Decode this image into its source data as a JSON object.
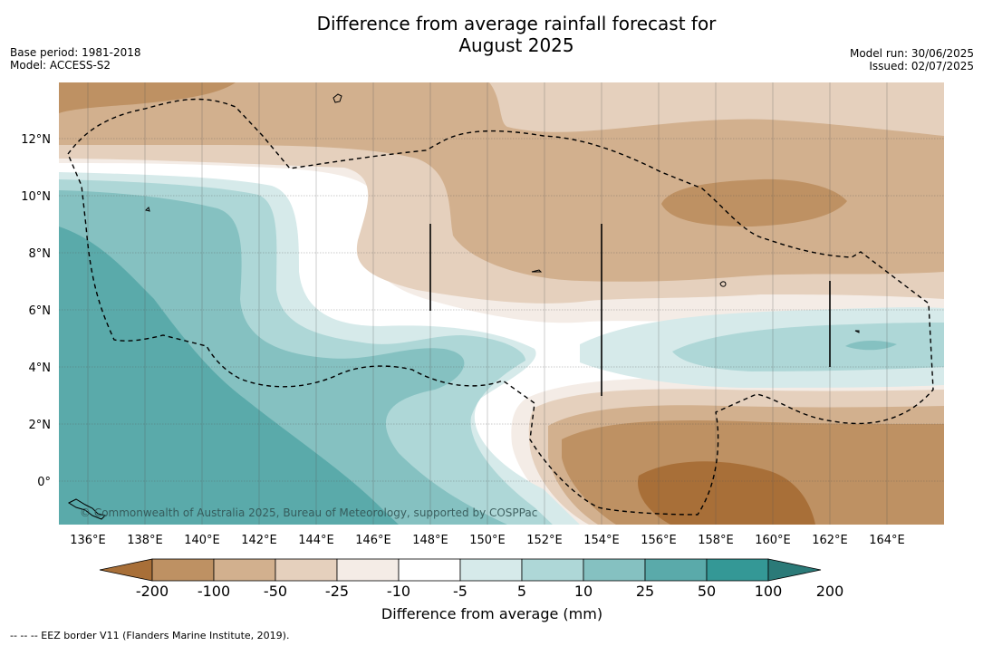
{
  "title_line1": "Difference from average rainfall forecast for",
  "title_line2": "August 2025",
  "base_period": "Base period: 1981-2018",
  "model": "Model: ACCESS-S2",
  "model_run": "Model run: 30/06/2025",
  "issued": "Issued: 02/07/2025",
  "copyright": "© Commonwealth of Australia 2025, Bureau of Meteorology, supported by COSPPac",
  "footer": "-- -- -- EEZ border V11 (Flanders Marine Institute, 2019).",
  "longitude_labels": [
    "136°E",
    "138°E",
    "140°E",
    "142°E",
    "144°E",
    "146°E",
    "148°E",
    "150°E",
    "152°E",
    "154°E",
    "156°E",
    "158°E",
    "160°E",
    "162°E",
    "164°E"
  ],
  "latitude_labels": [
    "12°N",
    "10°N",
    "8°N",
    "6°N",
    "4°N",
    "2°N",
    "0°"
  ],
  "colorbar": {
    "title": "Difference from average (mm)",
    "ticks": [
      "-200",
      "-100",
      "-50",
      "-25",
      "-10",
      "-5",
      "5",
      "10",
      "25",
      "50",
      "100",
      "200"
    ],
    "colors": [
      "#a86f38",
      "#be9163",
      "#d2b08e",
      "#e5d0bd",
      "#f4ece6",
      "#ffffff",
      "#d6eaea",
      "#aed7d7",
      "#85c1c1",
      "#5aaaaa",
      "#349896",
      "#2b7a78"
    ]
  }
}
